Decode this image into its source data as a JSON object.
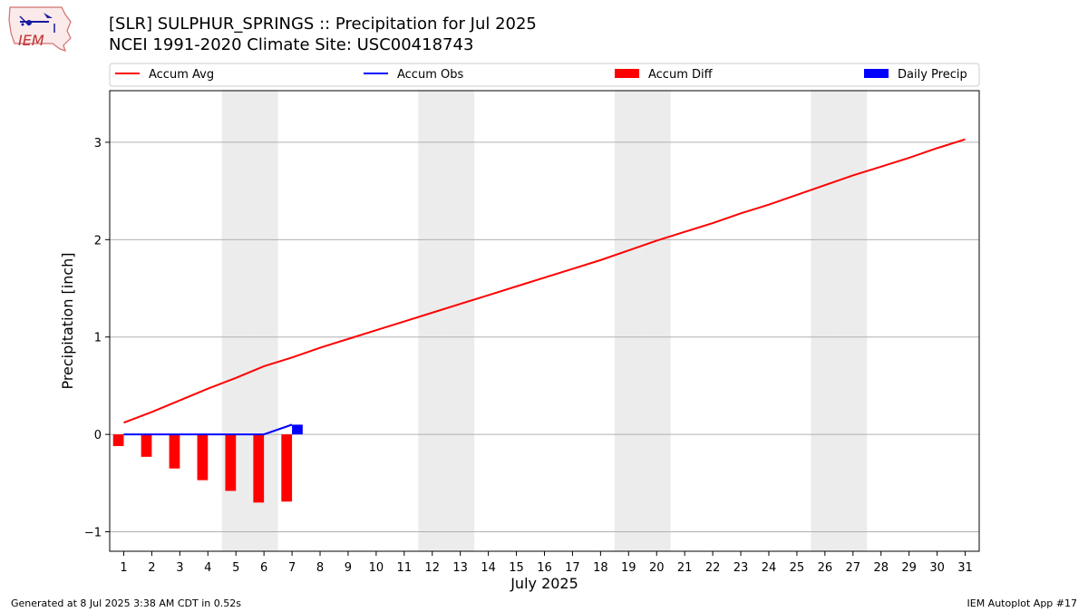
{
  "header": {
    "title_line1": "[SLR] SULPHUR_SPRINGS :: Precipitation for Jul 2025",
    "title_line2": "NCEI 1991-2020 Climate Site: USC00418743",
    "logo_text": "IEM"
  },
  "footer": {
    "left": "Generated at 8 Jul 2025 3:38 AM CDT in 0.52s",
    "right": "IEM Autoplot App #17"
  },
  "colors": {
    "avg": "#ff0000",
    "obs": "#0000ff",
    "diff": "#ff0000",
    "daily": "#0000ff",
    "weekend": "#ececec",
    "grid": "#b0b0b0"
  },
  "chart_data": {
    "type": "line",
    "title": "[SLR] SULPHUR_SPRINGS :: Precipitation for Jul 2025",
    "subtitle": "NCEI 1991-2020 Climate Site: USC00418743",
    "xlabel": "July 2025",
    "ylabel": "Precipitation [inch]",
    "xlim": [
      0.5,
      31.5
    ],
    "ylim": [
      -1.2,
      3.53
    ],
    "grid": true,
    "legend_placement": "top",
    "yticks": [
      -1,
      0,
      1,
      2,
      3
    ],
    "ytick_labels": [
      "−1",
      "0",
      "1",
      "2",
      "3"
    ],
    "x": [
      1,
      2,
      3,
      4,
      5,
      6,
      7,
      8,
      9,
      10,
      11,
      12,
      13,
      14,
      15,
      16,
      17,
      18,
      19,
      20,
      21,
      22,
      23,
      24,
      25,
      26,
      27,
      28,
      29,
      30,
      31
    ],
    "xtick_labels": [
      "1",
      "2",
      "3",
      "4",
      "5",
      "6",
      "7",
      "8",
      "9",
      "10",
      "11",
      "12",
      "13",
      "14",
      "15",
      "16",
      "17",
      "18",
      "19",
      "20",
      "21",
      "22",
      "23",
      "24",
      "25",
      "26",
      "27",
      "28",
      "29",
      "30",
      "31"
    ],
    "shaded_days": [
      5,
      6,
      12,
      13,
      19,
      20,
      26,
      27
    ],
    "legend": [
      "Accum Avg",
      "Accum Obs",
      "Accum Diff",
      "Daily Precip"
    ],
    "series": [
      {
        "name": "Accum Avg",
        "kind": "line",
        "color": "#ff0000",
        "x": [
          1,
          2,
          3,
          4,
          5,
          6,
          7,
          8,
          9,
          10,
          11,
          12,
          13,
          14,
          15,
          16,
          17,
          18,
          19,
          20,
          21,
          22,
          23,
          24,
          25,
          26,
          27,
          28,
          29,
          30,
          31
        ],
        "values": [
          0.12,
          0.23,
          0.35,
          0.47,
          0.58,
          0.7,
          0.79,
          0.89,
          0.98,
          1.07,
          1.16,
          1.25,
          1.34,
          1.43,
          1.52,
          1.61,
          1.7,
          1.79,
          1.89,
          1.99,
          2.08,
          2.17,
          2.27,
          2.36,
          2.46,
          2.56,
          2.66,
          2.75,
          2.84,
          2.94,
          3.03
        ]
      },
      {
        "name": "Accum Obs",
        "kind": "line",
        "color": "#0000ff",
        "x": [
          1,
          2,
          3,
          4,
          5,
          6,
          7
        ],
        "values": [
          0,
          0,
          0,
          0,
          0,
          0,
          0.1
        ]
      },
      {
        "name": "Accum Diff",
        "kind": "bar",
        "color": "#ff0000",
        "x": [
          1,
          2,
          3,
          4,
          5,
          6,
          7
        ],
        "values": [
          -0.12,
          -0.23,
          -0.35,
          -0.47,
          -0.58,
          -0.7,
          -0.69
        ]
      },
      {
        "name": "Daily Precip",
        "kind": "bar",
        "color": "#0000ff",
        "x": [
          7
        ],
        "values": [
          0.1
        ]
      }
    ]
  }
}
